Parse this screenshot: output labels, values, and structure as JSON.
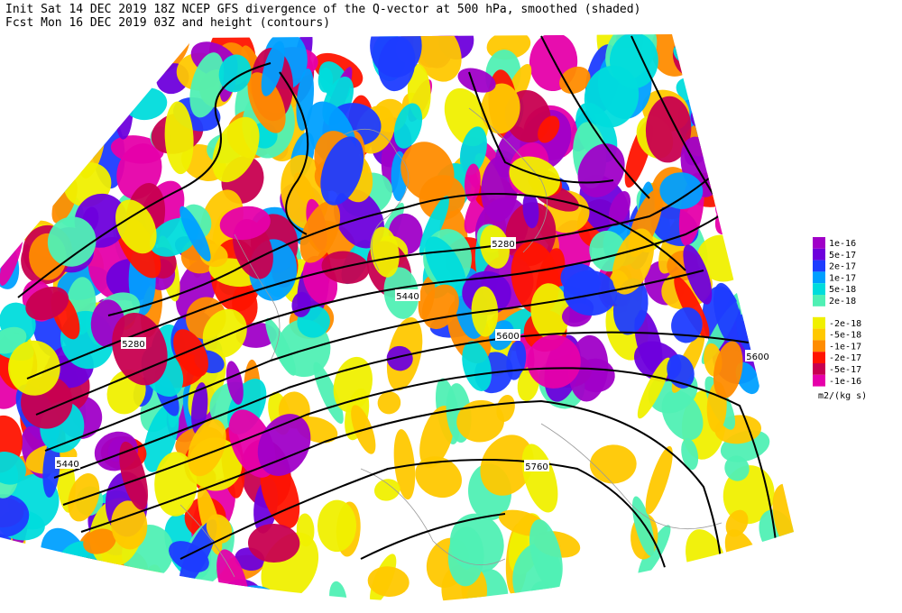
{
  "header": {
    "line1": "Init  Sat 14 DEC 2019 18Z  NCEP GFS divergence of the Q-vector at 500 hPa, smoothed (shaded)",
    "line2": "Fcst Mon 16 DEC 2019 03Z  and height (contours)"
  },
  "contour_labels": [
    "5280",
    "5440",
    "5280",
    "5600",
    "5600",
    "5440",
    "5760"
  ],
  "legend": {
    "labels": [
      "1e-16",
      "5e-17",
      "2e-17",
      "1e-17",
      "5e-18",
      "2e-18",
      "-2e-18",
      "-5e-18",
      "-1e-17",
      "-2e-17",
      "-5e-17",
      "-1e-16"
    ],
    "colors": [
      "#a000c8",
      "#6e00dc",
      "#1e3cff",
      "#00a0ff",
      "#00dcdc",
      "#50f0b4",
      "#f0f000",
      "#ffc800",
      "#ff8c00",
      "#ff1400",
      "#c80050",
      "#e600aa"
    ],
    "units": "m2/(kg s)"
  }
}
